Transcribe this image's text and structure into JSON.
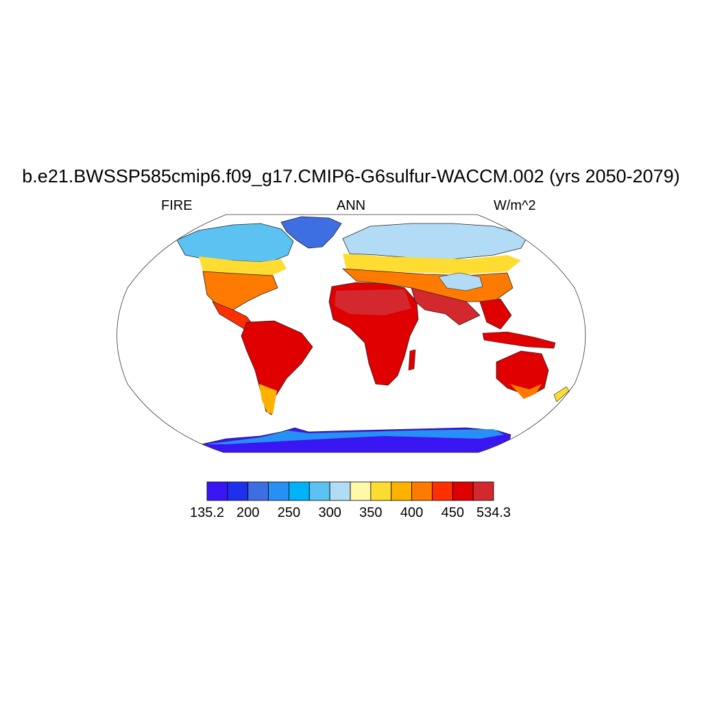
{
  "title": "b.e21.BWSSP585cmip6.f09_g17.CMIP6-G6sulfur-WACCM.002 (yrs 2050-2079)",
  "left_string": "FIRE",
  "center_string": "ANN",
  "right_string": "W/m^2",
  "colorbar": {
    "colors": [
      "#3a16f2",
      "#1e30ee",
      "#3d6ee2",
      "#2790f5",
      "#00b2f8",
      "#5bc2f2",
      "#b2dcf5",
      "#fff8a8",
      "#ffdc32",
      "#ffb100",
      "#ff7a00",
      "#ff2f00",
      "#e00000",
      "#d3282e"
    ],
    "labels": [
      "135.2",
      "200",
      "250",
      "300",
      "350",
      "400",
      "450",
      "534.3"
    ],
    "min": 135.2,
    "max": 534.3
  }
}
